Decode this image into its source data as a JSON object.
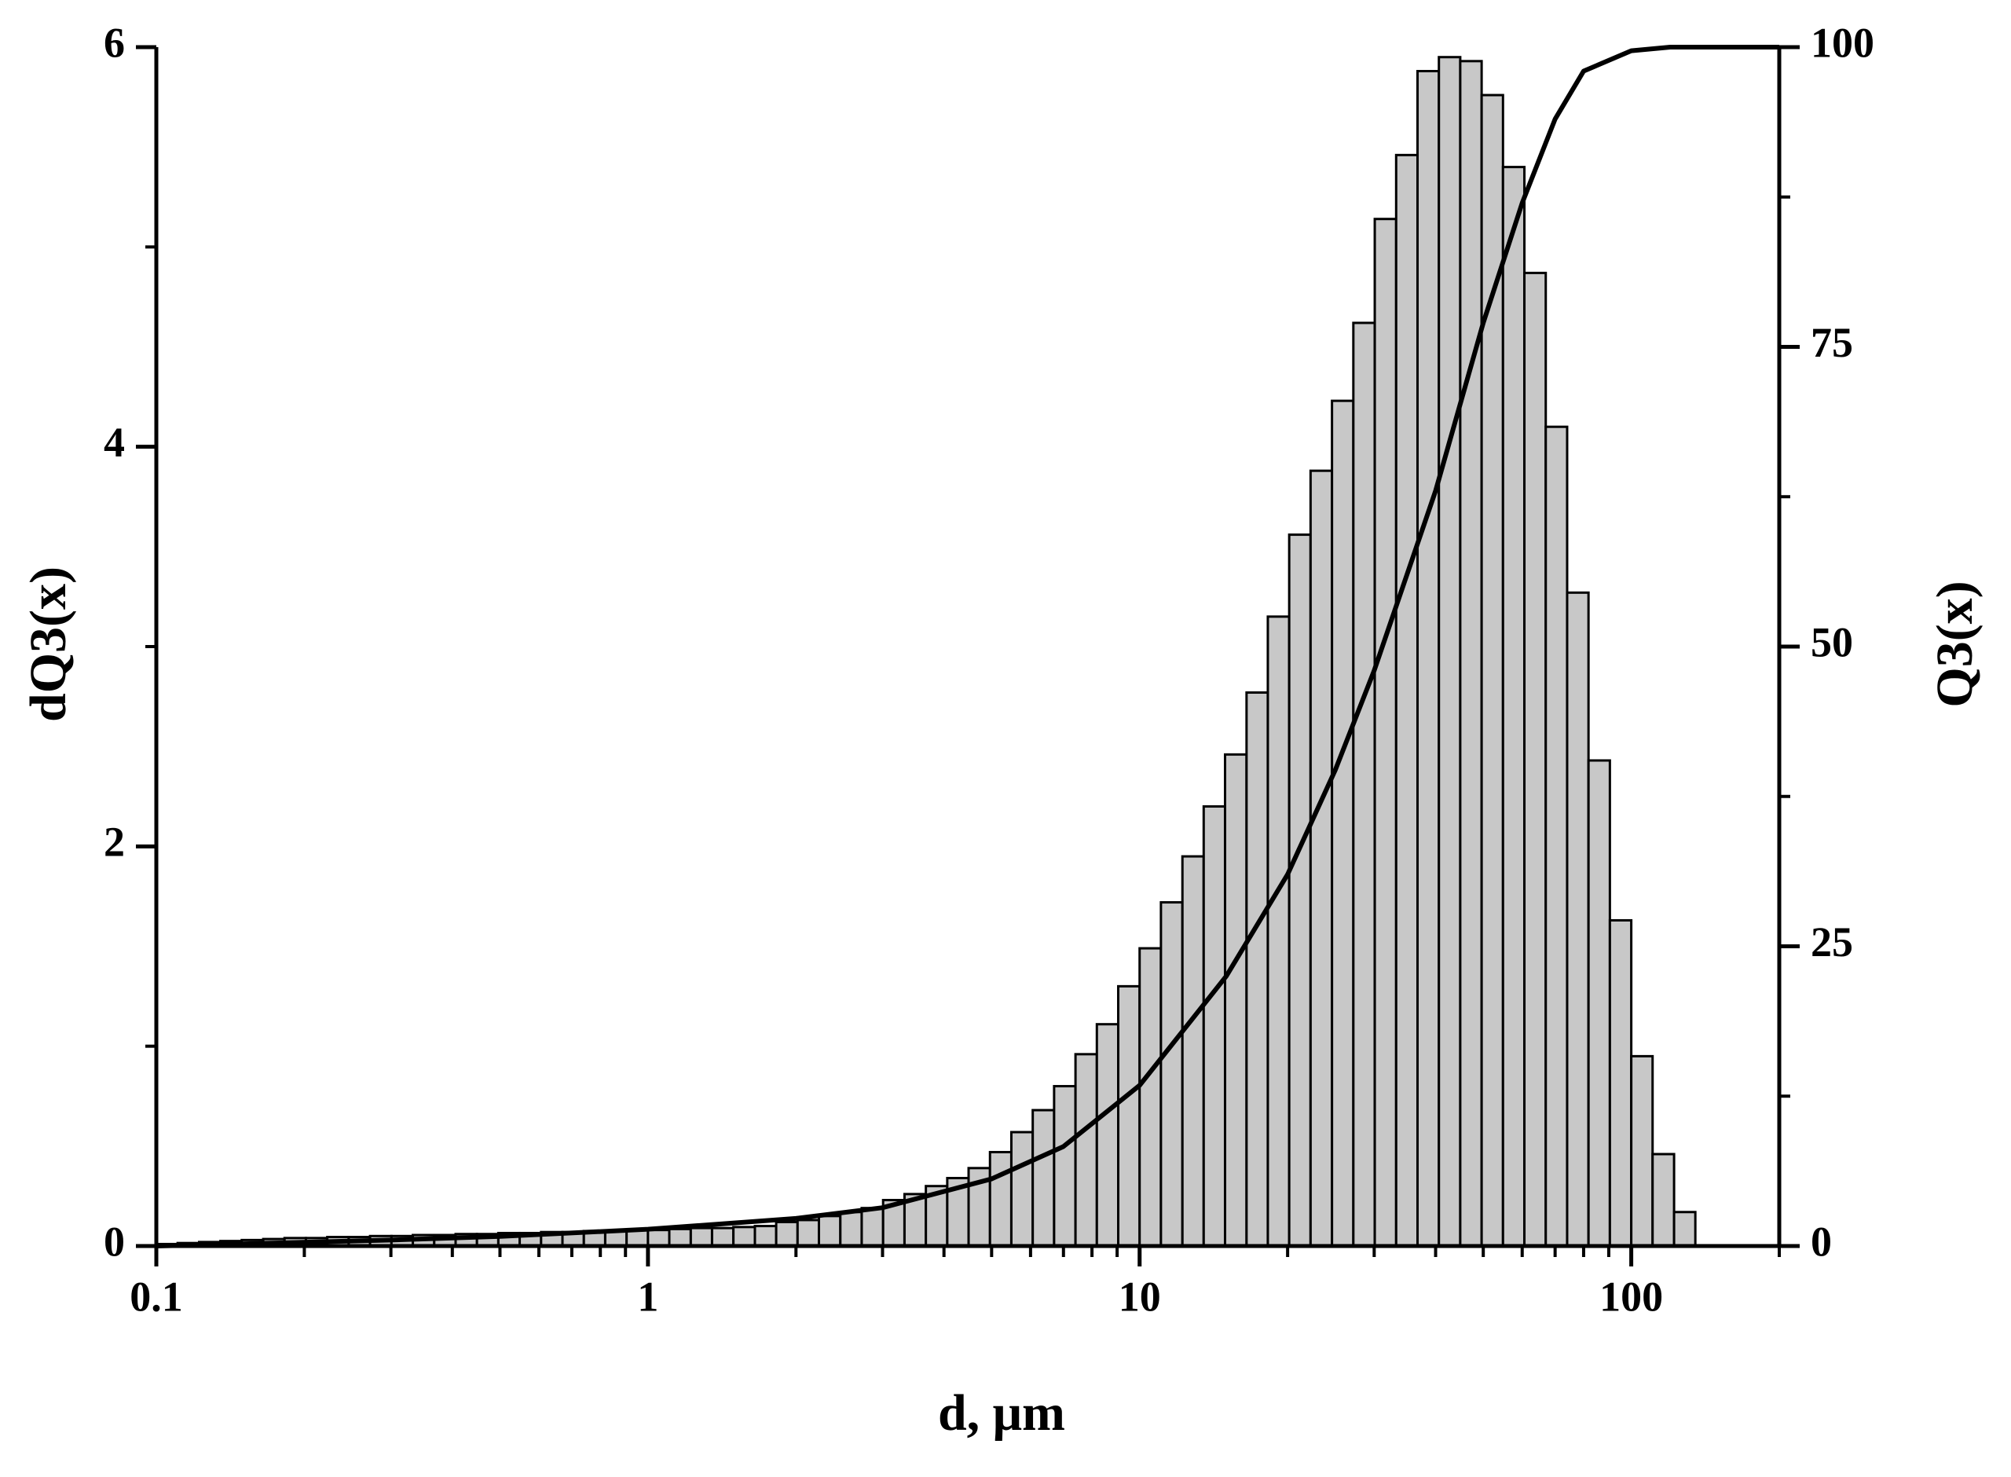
{
  "chart_data": {
    "type": "histogram",
    "xlabel": "d, μm",
    "ylabel": "dQ3(x)",
    "y2label": "Q3(x)",
    "xscale": "log",
    "color": "#c8c8c8",
    "edgecolor": "#000000",
    "bins": [
      0.1,
      0.1105,
      0.1222,
      0.135,
      0.1492,
      0.165,
      0.1823,
      0.2015,
      0.2227,
      0.2462,
      0.2721,
      0.3008,
      0.3325,
      0.3675,
      0.4062,
      0.4489,
      0.4962,
      0.5484,
      0.6062,
      0.67,
      0.7406,
      0.8185,
      0.9047,
      1,
      1.105,
      1.222,
      1.35,
      1.492,
      1.65,
      1.823,
      2.015,
      2.227,
      2.462,
      2.721,
      3.008,
      3.325,
      3.675,
      4.062,
      4.489,
      4.962,
      5.484,
      6.062,
      6.7,
      7.406,
      8.185,
      9.047,
      10,
      11.05,
      12.22,
      13.5,
      14.92,
      16.5,
      18.23,
      20.15,
      22.27,
      24.62,
      27.21,
      30.08,
      33.25,
      36.75,
      40.62,
      44.89,
      49.62,
      54.84,
      60.62,
      67,
      74.06,
      81.85,
      90.47,
      100,
      110.5,
      122.2,
      135
    ],
    "counts": [
      0.01,
      0.015,
      0.02,
      0.025,
      0.03,
      0.035,
      0.04,
      0.04,
      0.045,
      0.045,
      0.05,
      0.05,
      0.055,
      0.055,
      0.06,
      0.06,
      0.065,
      0.065,
      0.07,
      0.07,
      0.075,
      0.075,
      0.08,
      0.08,
      0.085,
      0.09,
      0.09,
      0.095,
      0.1,
      0.12,
      0.13,
      0.15,
      0.17,
      0.19,
      0.23,
      0.26,
      0.3,
      0.34,
      0.39,
      0.47,
      0.57,
      0.68,
      0.8,
      0.96,
      1.11,
      1.3,
      1.49,
      1.72,
      1.95,
      2.2,
      2.46,
      2.77,
      3.15,
      3.56,
      3.88,
      4.23,
      4.62,
      5.14,
      5.46,
      5.88,
      5.95,
      5.93,
      5.76,
      5.4,
      4.87,
      4.1,
      3.27,
      2.43,
      1.63,
      0.95,
      0.46,
      0.17
    ],
    "line": {
      "axis": "y2",
      "color": "#000000",
      "x": [
        0.1,
        0.3,
        0.5,
        1,
        2,
        3,
        5,
        7,
        10,
        15,
        20,
        25,
        30,
        40,
        50,
        60,
        70,
        80,
        100,
        120,
        200
      ],
      "values": [
        0,
        0.5,
        0.8,
        1.4,
        2.3,
        3.2,
        5.6,
        8.3,
        13.4,
        22.5,
        31,
        39.7,
        48,
        63,
        77,
        87,
        94,
        98,
        99.7,
        100,
        100
      ]
    },
    "xlim": [
      0.1,
      200
    ],
    "ylim": [
      0,
      6
    ],
    "y2lim": [
      0,
      100
    ],
    "xticks": [
      0.1,
      1,
      10,
      100
    ],
    "yticks": [
      0,
      2,
      4,
      6
    ],
    "y2ticks": [
      0,
      25,
      50,
      75,
      100
    ]
  }
}
